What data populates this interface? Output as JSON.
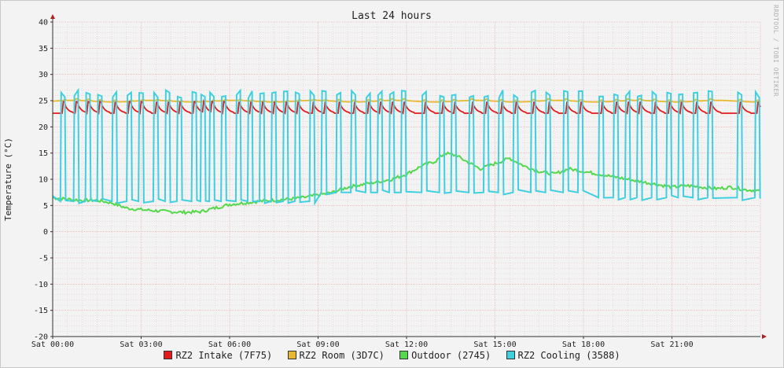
{
  "chart_data": {
    "type": "line",
    "title": "Last 24 hours",
    "ylabel": "Temperature (°C)",
    "watermark": "RRDTOOL / TOBI OETIKER",
    "ylim": [
      -20,
      40
    ],
    "y_ticks": [
      "40",
      "35",
      "30",
      "25",
      "20",
      "15",
      "10",
      "5",
      "0",
      "-5",
      "-10",
      "-15",
      "-20"
    ],
    "xlim_hours": [
      0,
      24
    ],
    "x_ticks": [
      {
        "h": 0,
        "label": "Sat 00:00"
      },
      {
        "h": 3,
        "label": "Sat 03:00"
      },
      {
        "h": 6,
        "label": "Sat 06:00"
      },
      {
        "h": 9,
        "label": "Sat 09:00"
      },
      {
        "h": 12,
        "label": "Sat 12:00"
      },
      {
        "h": 15,
        "label": "Sat 15:00"
      },
      {
        "h": 18,
        "label": "Sat 18:00"
      },
      {
        "h": 21,
        "label": "Sat 21:00"
      }
    ],
    "grid": true,
    "legend_position": "bottom",
    "series": [
      {
        "name": "RZ2 Intake (7F75)",
        "color": "#e31b1b",
        "kind": "intake"
      },
      {
        "name": "RZ2 Room (3D7C)",
        "color": "#e8b830",
        "kind": "room"
      },
      {
        "name": "Outdoor (2745)",
        "color": "#55d84c",
        "kind": "outdoor",
        "points": [
          [
            0,
            6.5
          ],
          [
            0.5,
            6.2
          ],
          [
            1,
            6.0
          ],
          [
            1.5,
            6.0
          ],
          [
            2,
            5.5
          ],
          [
            2.5,
            4.5
          ],
          [
            3,
            4.2
          ],
          [
            3.5,
            4.0
          ],
          [
            4,
            3.8
          ],
          [
            4.5,
            3.7
          ],
          [
            5,
            3.8
          ],
          [
            5.5,
            4.5
          ],
          [
            6,
            5.2
          ],
          [
            6.5,
            5.5
          ],
          [
            7,
            5.8
          ],
          [
            7.5,
            6.0
          ],
          [
            8,
            6.2
          ],
          [
            8.5,
            6.5
          ],
          [
            9,
            7.0
          ],
          [
            9.5,
            7.5
          ],
          [
            10,
            8.5
          ],
          [
            10.5,
            9.0
          ],
          [
            11,
            9.5
          ],
          [
            11.5,
            10.0
          ],
          [
            12,
            11.0
          ],
          [
            12.5,
            12.5
          ],
          [
            13,
            13.5
          ],
          [
            13.3,
            15.0
          ],
          [
            13.7,
            14.5
          ],
          [
            14,
            13.5
          ],
          [
            14.5,
            12.0
          ],
          [
            15,
            13.0
          ],
          [
            15.5,
            14.0
          ],
          [
            16,
            12.5
          ],
          [
            16.5,
            11.5
          ],
          [
            17,
            11.0
          ],
          [
            17.5,
            12.0
          ],
          [
            18,
            11.5
          ],
          [
            18.5,
            11.0
          ],
          [
            19,
            10.5
          ],
          [
            19.5,
            10.0
          ],
          [
            20,
            9.5
          ],
          [
            20.5,
            9.0
          ],
          [
            21,
            8.5
          ],
          [
            21.5,
            8.8
          ],
          [
            22,
            8.5
          ],
          [
            22.5,
            8.2
          ],
          [
            23,
            8.5
          ],
          [
            23.5,
            8.0
          ],
          [
            24,
            7.8
          ]
        ]
      },
      {
        "name": "RZ2 Cooling (3588)",
        "color": "#3fd0e0",
        "kind": "cooling",
        "spikes": [
          0.35,
          0.8,
          1.2,
          1.6,
          2.1,
          2.6,
          3.0,
          3.5,
          3.9,
          4.3,
          4.8,
          5.1,
          5.4,
          5.8,
          6.3,
          6.7,
          7.1,
          7.5,
          7.9,
          8.3,
          8.8,
          9.2,
          9.7,
          10.2,
          10.7,
          11.1,
          11.5,
          11.9,
          12.6,
          13.2,
          13.6,
          14.2,
          14.7,
          15.2,
          15.7,
          16.3,
          16.8,
          17.4,
          17.9,
          18.6,
          19.1,
          19.5,
          19.9,
          20.4,
          20.9,
          21.3,
          21.8,
          22.3,
          23.3,
          23.9
        ],
        "spike_top": 27,
        "base_start": 5.8,
        "base_mid": 7.5,
        "base_end": 6.5
      }
    ]
  }
}
